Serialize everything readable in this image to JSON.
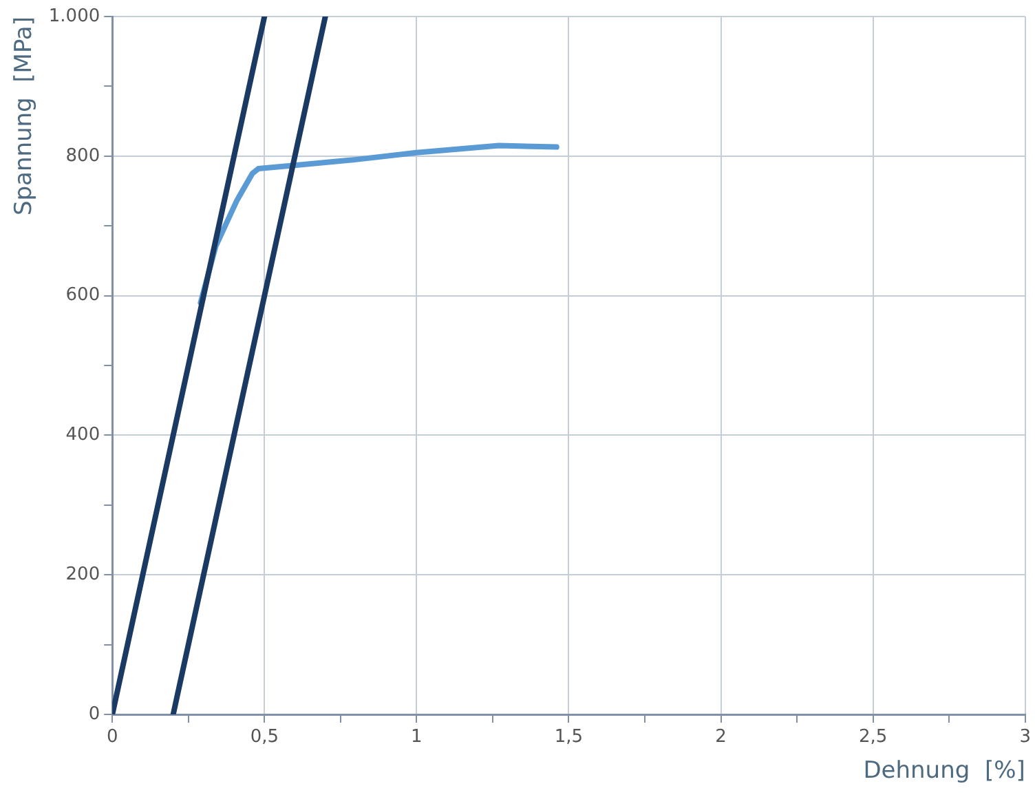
{
  "chart_data": {
    "type": "line",
    "xlabel": "Dehnung  [%]",
    "ylabel": "Spannung  [MPa]",
    "xlim": [
      0,
      3
    ],
    "ylim": [
      0,
      1000
    ],
    "xticks": [
      0,
      {
        "value": 0.25,
        "label": null
      },
      {
        "value": 0.5,
        "label": "0,5"
      },
      {
        "value": 0.75,
        "label": null
      },
      1,
      {
        "value": 1.25,
        "label": null
      },
      {
        "value": 1.5,
        "label": "1,5"
      },
      {
        "value": 1.75,
        "label": null
      },
      2,
      {
        "value": 2.25,
        "label": null
      },
      {
        "value": 2.5,
        "label": "2,5"
      },
      {
        "value": 2.75,
        "label": null
      },
      3
    ],
    "yticks": [
      0,
      {
        "value": 100,
        "label": null
      },
      200,
      {
        "value": 300,
        "label": null
      },
      400,
      {
        "value": 500,
        "label": null
      },
      600,
      {
        "value": 700,
        "label": null
      },
      800,
      {
        "value": 900,
        "label": null
      },
      {
        "value": 1000,
        "label": "1.000"
      }
    ],
    "grid": true,
    "legend": false,
    "marker": "none",
    "line_style": "solid",
    "series": [
      {
        "color": "#1b3a63",
        "x": [
          0,
          0.5
        ],
        "values": [
          0,
          1000
        ]
      },
      {
        "color": "#1b3a63",
        "x": [
          0.2,
          0.7
        ],
        "values": [
          0,
          1000
        ]
      },
      {
        "color": "#5b9bd5",
        "x": [
          0.29,
          0.34,
          0.41,
          0.46,
          0.48,
          0.58,
          0.8,
          1.0,
          1.27,
          1.46
        ],
        "values": [
          590,
          671,
          737,
          775,
          782,
          786,
          795,
          805,
          815,
          813
        ]
      }
    ]
  }
}
